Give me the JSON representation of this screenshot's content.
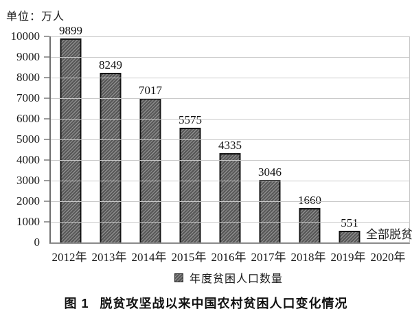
{
  "unit_label": "单位：万人",
  "chart_data": {
    "type": "bar",
    "title": "图 1  脱贫攻坚战以来中国农村贫困人口变化情况",
    "categories": [
      "2012年",
      "2013年",
      "2014年",
      "2015年",
      "2016年",
      "2017年",
      "2018年",
      "2019年",
      "2020年"
    ],
    "values": [
      9899,
      8249,
      7017,
      5575,
      4335,
      3046,
      1660,
      551,
      null
    ],
    "data_labels": [
      "9899",
      "8249",
      "7017",
      "5575",
      "4335",
      "3046",
      "1660",
      "551",
      "全部脱贫"
    ],
    "annotation_2020": "全部脱贫",
    "unit": "万人",
    "ylim": [
      0,
      10000
    ],
    "ytick_interval": 1000,
    "yticks": [
      0,
      1000,
      2000,
      3000,
      4000,
      5000,
      6000,
      7000,
      8000,
      9000,
      10000
    ],
    "grid": "horizontal",
    "legend_entries": [
      "年度贫困人口数量"
    ],
    "legend_position": "bottom-center"
  },
  "legend": {
    "label": "年度贫困人口数量"
  },
  "caption": {
    "figure_label": "图 1",
    "title": "脱贫攻坚战以来中国农村贫困人口变化情况"
  },
  "colors": {
    "bar_fill": "#585858",
    "bar_hatch": "#8f8f8f",
    "bar_border": "#141414",
    "gridline": "#c9c9c9",
    "axis": "#8a8a8a",
    "text": "#1a1a1a",
    "background": "#ffffff"
  }
}
